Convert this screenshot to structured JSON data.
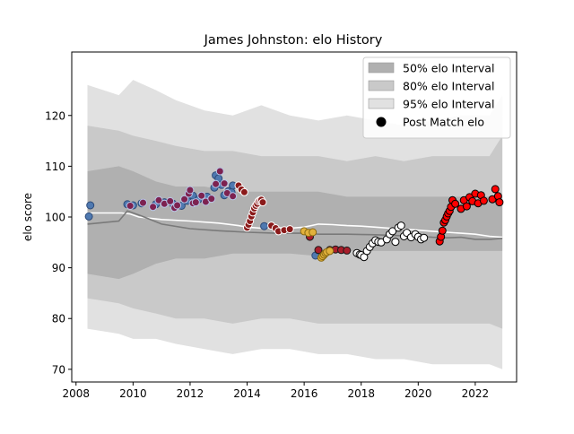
{
  "chart_data": {
    "type": "line",
    "title": "James Johnston: elo History",
    "ylabel": "elo score",
    "xlabel": "",
    "xlim": [
      2007.85,
      2023.45
    ],
    "ylim": [
      67.5,
      132.5
    ],
    "x_ticks": [
      2008,
      2010,
      2012,
      2014,
      2016,
      2018,
      2020,
      2022
    ],
    "y_ticks": [
      70,
      80,
      90,
      100,
      110,
      120
    ],
    "legend": {
      "placement": "top-right",
      "entries": [
        "50% elo Interval",
        "80% elo Interval",
        "95% elo Interval",
        "Post Match elo"
      ]
    },
    "bands": {
      "x": [
        2008.4,
        2009.5,
        2010.0,
        2010.8,
        2011.5,
        2012.5,
        2013.5,
        2014.5,
        2015.5,
        2016.5,
        2017.5,
        2018.5,
        2019.5,
        2020.5,
        2021.5,
        2022.5,
        2022.95
      ],
      "b95": {
        "upper": [
          126,
          124,
          127,
          125,
          123,
          121,
          120,
          122,
          120,
          119,
          120,
          119,
          118,
          119,
          120,
          120,
          124
        ],
        "lower": [
          78,
          77,
          76,
          76,
          75,
          74,
          73,
          74,
          74,
          73,
          73,
          72,
          72,
          71,
          71,
          71,
          70
        ]
      },
      "b80": {
        "upper": [
          118,
          117,
          116,
          115,
          114,
          113,
          113,
          112,
          112,
          112,
          111,
          112,
          111,
          112,
          112,
          112,
          116
        ],
        "lower": [
          84,
          83,
          82,
          81,
          80,
          80,
          79,
          80,
          80,
          79,
          79,
          79,
          79,
          79,
          79,
          79,
          78
        ]
      },
      "b50": {
        "upper": [
          109,
          110,
          109,
          107,
          106,
          106,
          105,
          105,
          105,
          105,
          104,
          104,
          104,
          104,
          104,
          104,
          104
        ]
      }
    },
    "lines": [
      {
        "color": "#ffffff",
        "x": [
          2008.4,
          2009.6,
          2009.9,
          2010.2,
          2011.0,
          2012.0,
          2013.0,
          2013.7,
          2014.0,
          2014.5,
          2015.0,
          2015.5,
          2016.0,
          2016.5,
          2017.0,
          2017.5,
          2018.0,
          2018.5,
          2019.0,
          2019.5,
          2020.0,
          2020.5,
          2021.0,
          2021.5,
          2022.0,
          2022.5,
          2022.95
        ],
        "y": [
          100.8,
          100.8,
          100.6,
          100.0,
          99.5,
          99.2,
          98.8,
          98.3,
          98.0,
          97.8,
          97.9,
          97.8,
          98.0,
          98.6,
          98.5,
          98.3,
          98.2,
          98.0,
          97.8,
          97.6,
          97.4,
          97.2,
          97.0,
          96.8,
          96.6,
          96.2,
          96.0
        ]
      },
      {
        "color": "#7a7a7a",
        "x": [
          2008.4,
          2009.5,
          2009.8,
          2010.3,
          2011.0,
          2012.0,
          2013.0,
          2014.0,
          2015.0,
          2016.0,
          2016.5,
          2017.5,
          2018.5,
          2019.5,
          2020.0,
          2020.5,
          2021.0,
          2021.5,
          2022.0,
          2022.5,
          2022.95
        ],
        "y": [
          98.6,
          99.2,
          101.2,
          100.2,
          98.6,
          97.7,
          97.3,
          97.0,
          96.8,
          96.8,
          96.6,
          96.6,
          96.5,
          96.3,
          96.2,
          96.0,
          95.9,
          96.0,
          95.6,
          95.6,
          95.8
        ]
      }
    ],
    "series": [
      {
        "fill": "#4f79b0",
        "edge": "#2d4a78",
        "x": [
          2008.45,
          2008.5,
          2009.8,
          2010.0,
          2010.3,
          2010.8,
          2011.1,
          2011.4,
          2011.7,
          2011.9,
          2012.1,
          2012.3,
          2012.6,
          2012.85,
          2012.9,
          2013.0,
          2013.1,
          2013.2,
          2013.35,
          2013.45,
          2013.5,
          2014.6,
          2016.4
        ],
        "y": [
          100.1,
          102.3,
          102.5,
          102.3,
          102.7,
          102.5,
          102.9,
          102.6,
          102.2,
          103.2,
          104.2,
          103.5,
          104.0,
          105.8,
          108.2,
          107.6,
          106.3,
          104.3,
          105.1,
          104.9,
          106.2,
          98.2,
          92.4
        ]
      },
      {
        "fill": "#7d2250",
        "edge": "#b9c6e8",
        "x": [
          2009.9,
          2010.35,
          2010.7,
          2010.9,
          2011.1,
          2011.3,
          2011.45,
          2011.55,
          2011.8,
          2011.95,
          2012.0,
          2012.1,
          2012.2,
          2012.4,
          2012.55,
          2012.75,
          2012.9,
          2013.05,
          2013.2,
          2013.3,
          2013.5
        ],
        "y": [
          102.2,
          102.8,
          102.0,
          103.3,
          102.6,
          103.1,
          101.8,
          102.3,
          103.5,
          104.6,
          105.3,
          102.7,
          102.9,
          104.2,
          103.0,
          103.6,
          106.5,
          109.0,
          106.6,
          104.7,
          104.1
        ]
      },
      {
        "fill": "#8b1a1a",
        "edge": "#ffffff",
        "x": [
          2013.7,
          2013.8,
          2013.9,
          2014.0,
          2014.05,
          2014.1,
          2014.15,
          2014.2,
          2014.25,
          2014.3,
          2014.35,
          2014.4,
          2014.45,
          2014.5,
          2014.55,
          2014.85,
          2015.0,
          2015.1,
          2015.3,
          2015.5
        ],
        "y": [
          106.2,
          105.4,
          104.9,
          97.9,
          98.5,
          99.2,
          100.1,
          100.9,
          101.7,
          102.2,
          102.6,
          103.1,
          103.3,
          103.4,
          102.9,
          98.3,
          97.8,
          97.2,
          97.4,
          97.6
        ]
      },
      {
        "fill": "#a91e2b",
        "edge": "#1a1a1a",
        "x": [
          2016.2,
          2016.5,
          2016.9,
          2017.1,
          2017.3,
          2017.5
        ],
        "y": [
          96.1,
          93.5,
          93.5,
          93.6,
          93.5,
          93.4
        ]
      },
      {
        "fill": "#e2b13c",
        "edge": "#8a6a12",
        "x": [
          2016.0,
          2016.15,
          2016.3,
          2016.6,
          2016.65,
          2016.7,
          2016.75,
          2016.8,
          2016.9
        ],
        "y": [
          97.2,
          96.9,
          97.0,
          92.0,
          92.3,
          92.6,
          92.9,
          93.1,
          93.3
        ]
      },
      {
        "fill": "#ffffff",
        "edge": "#000000",
        "x": [
          2017.85,
          2017.95,
          2018.0,
          2018.1,
          2018.2,
          2018.3,
          2018.4,
          2018.5,
          2018.6,
          2018.7,
          2018.9,
          2019.0,
          2019.1,
          2019.2,
          2019.3,
          2019.4,
          2019.5,
          2019.6,
          2019.75,
          2019.9,
          2020.0,
          2020.1,
          2020.2
        ],
        "y": [
          92.9,
          92.6,
          92.5,
          92.1,
          93.3,
          94.1,
          94.8,
          95.4,
          95.1,
          95.0,
          95.6,
          96.6,
          97.2,
          95.1,
          97.9,
          98.3,
          96.2,
          96.9,
          96.0,
          96.6,
          96.1,
          95.6,
          95.9
        ]
      },
      {
        "fill": "#ff0000",
        "edge": "#000000",
        "x": [
          2020.75,
          2020.8,
          2020.85,
          2020.9,
          2020.95,
          2021.0,
          2021.05,
          2021.1,
          2021.15,
          2021.2,
          2021.3,
          2021.5,
          2021.6,
          2021.7,
          2021.8,
          2021.9,
          2022.0,
          2022.1,
          2022.2,
          2022.3,
          2022.6,
          2022.7,
          2022.8,
          2022.85
        ],
        "y": [
          95.2,
          96.1,
          97.3,
          98.9,
          99.4,
          100.1,
          100.7,
          101.2,
          102.0,
          103.3,
          102.6,
          101.6,
          103.3,
          102.1,
          103.9,
          103.1,
          104.6,
          102.7,
          104.3,
          103.2,
          103.5,
          105.5,
          104.1,
          102.9
        ]
      }
    ]
  }
}
